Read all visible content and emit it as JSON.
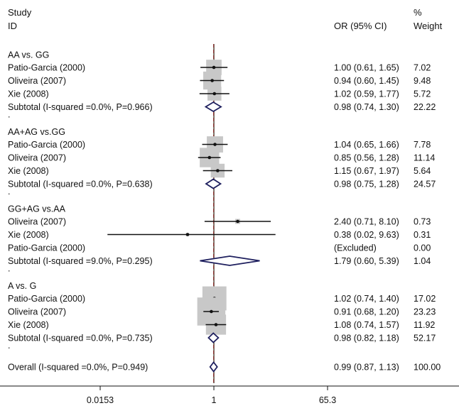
{
  "chart_data": {
    "type": "forest",
    "x_scale": "log",
    "x_range": [
      0.0153,
      65.3
    ],
    "null_line": 1,
    "xticks": [
      {
        "value": 0.0153,
        "label": "0.0153"
      },
      {
        "value": 1,
        "label": "1"
      },
      {
        "value": 65.3,
        "label": "65.3"
      }
    ],
    "headers": {
      "study_line1": "Study",
      "study_line2": "ID",
      "or_label": "OR (95% CI)",
      "weight_line1": "%",
      "weight_line2": "Weight"
    },
    "colors": {
      "box": "#c8c8c8",
      "diamond": "#1e1f5e",
      "null_line": "#4a3a2a",
      "overall_line": "#8b2a2a",
      "ci_line": "#111111"
    },
    "groups": [
      {
        "title": "AA vs. GG",
        "studies": [
          {
            "name": "Patio-Garcia (2000)",
            "or": 1.0,
            "low": 0.61,
            "high": 1.65,
            "or_text": "1.00 (0.61, 1.65)",
            "weight": 7.02,
            "weight_text": "7.02"
          },
          {
            "name": "Oliveira (2007)",
            "or": 0.94,
            "low": 0.6,
            "high": 1.45,
            "or_text": "0.94 (0.60, 1.45)",
            "weight": 9.48,
            "weight_text": "9.48"
          },
          {
            "name": "Xie (2008)",
            "or": 1.02,
            "low": 0.59,
            "high": 1.77,
            "or_text": "1.02 (0.59, 1.77)",
            "weight": 5.72,
            "weight_text": "5.72"
          }
        ],
        "subtotal": {
          "label": "Subtotal  (I-squared =0.0%, P=0.966)",
          "or": 0.98,
          "low": 0.74,
          "high": 1.3,
          "or_text": "0.98 (0.74, 1.30)",
          "weight_text": "22.22"
        }
      },
      {
        "title": "AA+AG vs.GG",
        "studies": [
          {
            "name": "Patio-Garcia (2000)",
            "or": 1.04,
            "low": 0.65,
            "high": 1.66,
            "or_text": "1.04 (0.65, 1.66)",
            "weight": 7.78,
            "weight_text": "7.78"
          },
          {
            "name": "Oliveira (2007)",
            "or": 0.85,
            "low": 0.56,
            "high": 1.28,
            "or_text": "0.85 (0.56, 1.28)",
            "weight": 11.14,
            "weight_text": "11.14"
          },
          {
            "name": "Xie (2008)",
            "or": 1.15,
            "low": 0.67,
            "high": 1.97,
            "or_text": "1.15 (0.67, 1.97)",
            "weight": 5.64,
            "weight_text": "5.64"
          }
        ],
        "subtotal": {
          "label": "Subtotal  (I-squared =0.0%, P=0.638)",
          "or": 0.98,
          "low": 0.75,
          "high": 1.28,
          "or_text": "0.98 (0.75, 1.28)",
          "weight_text": "24.57"
        }
      },
      {
        "title": "GG+AG vs.AA",
        "studies": [
          {
            "name": "Oliveira (2007)",
            "or": 2.4,
            "low": 0.71,
            "high": 8.1,
            "or_text": "2.40 (0.71, 8.10)",
            "weight": 0.73,
            "weight_text": "0.73"
          },
          {
            "name": "Xie (2008)",
            "or": 0.38,
            "low": 0.02,
            "high": 9.63,
            "or_text": "0.38 (0.02, 9.63)",
            "weight": 0.31,
            "weight_text": "0.31"
          },
          {
            "name": "Patio-Garcia (2000)",
            "or": null,
            "low": null,
            "high": null,
            "or_text": "(Excluded)",
            "weight": 0.0,
            "weight_text": "0.00"
          }
        ],
        "subtotal": {
          "label": "Subtotal  (I-squared =9.0%, P=0.295)",
          "or": 1.79,
          "low": 0.6,
          "high": 5.39,
          "or_text": "1.79 (0.60, 5.39)",
          "weight_text": "1.04"
        }
      },
      {
        "title": "A vs. G",
        "studies": [
          {
            "name": "Patio-Garcia (2000)",
            "or": 1.02,
            "low": 0.74,
            "high": 1.4,
            "or_text": "1.02 (0.74, 1.40)",
            "weight": 17.02,
            "weight_text": "17.02"
          },
          {
            "name": "Oliveira (2007)",
            "or": 0.91,
            "low": 0.68,
            "high": 1.2,
            "or_text": "0.91 (0.68, 1.20)",
            "weight": 23.23,
            "weight_text": "23.23"
          },
          {
            "name": "Xie (2008)",
            "or": 1.08,
            "low": 0.74,
            "high": 1.57,
            "or_text": "1.08 (0.74, 1.57)",
            "weight": 11.92,
            "weight_text": "11.92"
          }
        ],
        "subtotal": {
          "label": "Subtotal  (I-squared =0.0%, P=0.735)",
          "or": 0.98,
          "low": 0.82,
          "high": 1.18,
          "or_text": "0.98 (0.82, 1.18)",
          "weight_text": "52.17"
        }
      }
    ],
    "overall": {
      "label": "Overall  (I-squared =0.0%, P=0.949)",
      "or": 0.99,
      "low": 0.87,
      "high": 1.13,
      "or_text": "0.99 (0.87, 1.13)",
      "weight_text": "100.00"
    }
  }
}
